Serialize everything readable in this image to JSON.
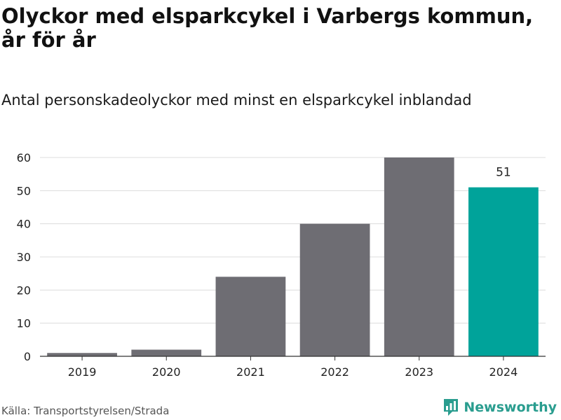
{
  "chart_data": {
    "type": "bar",
    "title": "Olyckor med elsparkcykel i Varbergs kommun, år för år",
    "subtitle": "Antal personskadeolyckor med minst en elsparkcykel inblandad",
    "categories": [
      "2019",
      "2020",
      "2021",
      "2022",
      "2023",
      "2024"
    ],
    "values": [
      1,
      2,
      24,
      40,
      60,
      51
    ],
    "data_labels": [
      {
        "category": "2024",
        "text": "51"
      }
    ],
    "ylim": [
      0,
      60
    ],
    "yticks": [
      0,
      10,
      20,
      30,
      40,
      50,
      60
    ],
    "grid": true,
    "colors": {
      "default": "#6e6d73",
      "highlight": "#00a39a"
    },
    "highlight_category": "2024"
  },
  "footer": {
    "source": "Källa: Transportstyrelsen/Strada",
    "brand": "Newsworthy"
  },
  "icons": {
    "brand_logo": "bar-chart-icon"
  }
}
